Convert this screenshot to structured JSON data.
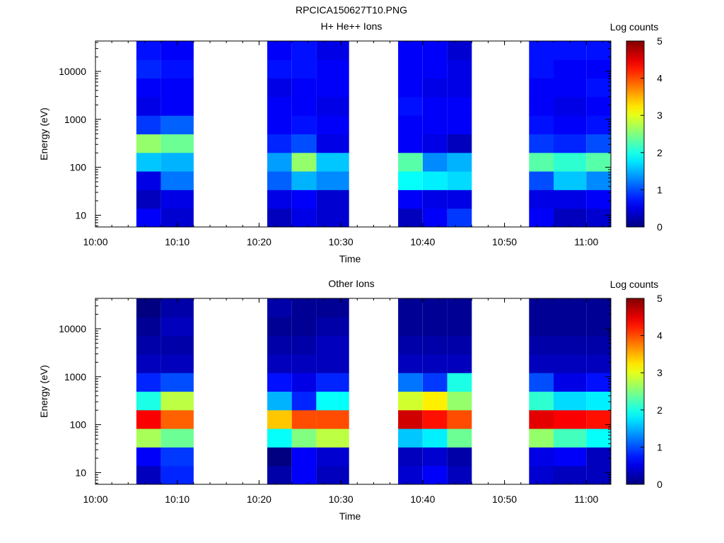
{
  "figure_title": "RPCICA150627T10.PNG",
  "chart_data": [
    {
      "type": "heatmap",
      "title": "H+ He++ Ions",
      "xlabel": "Time",
      "ylabel": "Energy (eV)",
      "x_ticks": [
        "10:00",
        "10:10",
        "10:20",
        "10:30",
        "10:40",
        "10:50",
        "11:00"
      ],
      "y_ticks": [
        "10",
        "100",
        "1000",
        "10000"
      ],
      "y_scale": "log",
      "ylim": [
        5.7,
        43000
      ],
      "xlim": [
        "10:00",
        "11:03"
      ],
      "colorbar": {
        "label": "Log counts",
        "ticks": [
          "0",
          "1",
          "2",
          "3",
          "4",
          "5"
        ],
        "range": [
          0,
          5
        ],
        "colormap": "rainbow"
      },
      "columns": [
        {
          "start": "10:05",
          "end": "10:08"
        },
        {
          "start": "10:08",
          "end": "10:12"
        },
        {
          "start": "10:21",
          "end": "10:24"
        },
        {
          "start": "10:24",
          "end": "10:27"
        },
        {
          "start": "10:27",
          "end": "10:31"
        },
        {
          "start": "10:37",
          "end": "10:40"
        },
        {
          "start": "10:40",
          "end": "10:43"
        },
        {
          "start": "10:43",
          "end": "10:46"
        },
        {
          "start": "10:53",
          "end": "10:56"
        },
        {
          "start": "10:56",
          "end": "11:00"
        },
        {
          "start": "11:00",
          "end": "11:03"
        }
      ],
      "log_counts_by_column": [
        [
          0.6,
          0.3,
          0.5,
          1.6,
          2.6,
          0.9,
          0.5,
          0.6,
          0.8,
          0.7
        ],
        [
          0.4,
          0.5,
          1.2,
          1.5,
          2.4,
          1.1,
          0.6,
          0.6,
          0.7,
          0.6
        ],
        [
          0.3,
          0.5,
          1.1,
          1.4,
          0.8,
          0.6,
          0.6,
          0.5,
          0.7,
          0.6
        ],
        [
          0.5,
          0.6,
          1.5,
          2.6,
          1.0,
          0.7,
          0.6,
          0.6,
          0.7,
          0.7
        ],
        [
          0.4,
          0.4,
          1.3,
          1.6,
          0.5,
          0.6,
          0.5,
          0.6,
          0.6,
          0.5
        ],
        [
          0.3,
          0.6,
          1.9,
          2.3,
          0.6,
          0.6,
          0.7,
          0.6,
          0.6,
          0.6
        ],
        [
          0.6,
          0.5,
          1.8,
          1.3,
          0.5,
          0.6,
          0.6,
          0.5,
          0.6,
          0.6
        ],
        [
          0.9,
          0.5,
          1.7,
          1.5,
          0.3,
          0.6,
          0.6,
          0.5,
          0.5,
          0.4
        ],
        [
          0.6,
          0.5,
          1.0,
          2.3,
          0.9,
          0.7,
          0.6,
          0.6,
          0.7,
          0.7
        ],
        [
          0.3,
          0.5,
          1.6,
          2.1,
          0.8,
          0.6,
          0.5,
          0.6,
          0.6,
          0.7
        ],
        [
          0.4,
          0.6,
          1.3,
          2.3,
          1.0,
          0.7,
          0.6,
          0.7,
          0.6,
          0.7
        ]
      ]
    },
    {
      "type": "heatmap",
      "title": "Other Ions",
      "xlabel": "Time",
      "ylabel": "Energy (eV)",
      "x_ticks": [
        "10:00",
        "10:10",
        "10:20",
        "10:30",
        "10:40",
        "10:50",
        "11:00"
      ],
      "y_ticks": [
        "10",
        "100",
        "1000",
        "10000"
      ],
      "y_scale": "log",
      "ylim": [
        5.7,
        43000
      ],
      "xlim": [
        "10:00",
        "11:03"
      ],
      "colorbar": {
        "label": "Log counts",
        "ticks": [
          "0",
          "1",
          "2",
          "3",
          "4",
          "5"
        ],
        "range": [
          0,
          5
        ],
        "colormap": "rainbow"
      },
      "columns": [
        {
          "start": "10:05",
          "end": "10:08"
        },
        {
          "start": "10:08",
          "end": "10:12"
        },
        {
          "start": "10:21",
          "end": "10:24"
        },
        {
          "start": "10:24",
          "end": "10:27"
        },
        {
          "start": "10:27",
          "end": "10:31"
        },
        {
          "start": "10:37",
          "end": "10:40"
        },
        {
          "start": "10:40",
          "end": "10:43"
        },
        {
          "start": "10:43",
          "end": "10:46"
        },
        {
          "start": "10:53",
          "end": "10:56"
        },
        {
          "start": "10:56",
          "end": "11:00"
        },
        {
          "start": "11:00",
          "end": "11:03"
        }
      ],
      "log_counts_by_column": [
        [
          0.3,
          0.6,
          2.7,
          4.4,
          2.0,
          0.8,
          0.3,
          0.2,
          0.1,
          0.0
        ],
        [
          0.8,
          0.9,
          2.4,
          3.9,
          2.8,
          1.0,
          0.3,
          0.2,
          0.3,
          0.2
        ],
        [
          0.2,
          0.0,
          1.9,
          3.4,
          1.5,
          0.7,
          0.3,
          0.2,
          0.1,
          0.2
        ],
        [
          0.6,
          0.6,
          2.5,
          4.0,
          0.8,
          0.5,
          0.3,
          0.2,
          0.1,
          0.1
        ],
        [
          0.3,
          0.4,
          2.8,
          4.0,
          1.9,
          0.8,
          0.3,
          0.3,
          0.2,
          0.1
        ],
        [
          0.4,
          0.3,
          1.6,
          4.6,
          2.9,
          1.2,
          0.3,
          0.2,
          0.1,
          0.1
        ],
        [
          0.6,
          0.4,
          1.8,
          4.3,
          3.2,
          0.9,
          0.3,
          0.2,
          0.1,
          0.1
        ],
        [
          0.3,
          0.2,
          2.4,
          4.0,
          2.6,
          2.0,
          0.3,
          0.2,
          0.1,
          0.1
        ],
        [
          0.4,
          0.5,
          2.6,
          4.5,
          2.1,
          1.0,
          0.3,
          0.2,
          0.1,
          0.1
        ],
        [
          0.3,
          0.6,
          2.2,
          4.4,
          1.7,
          0.5,
          0.3,
          0.2,
          0.1,
          0.1
        ],
        [
          0.3,
          0.3,
          1.9,
          4.3,
          1.8,
          0.7,
          0.3,
          0.2,
          0.1,
          0.1
        ]
      ]
    }
  ]
}
